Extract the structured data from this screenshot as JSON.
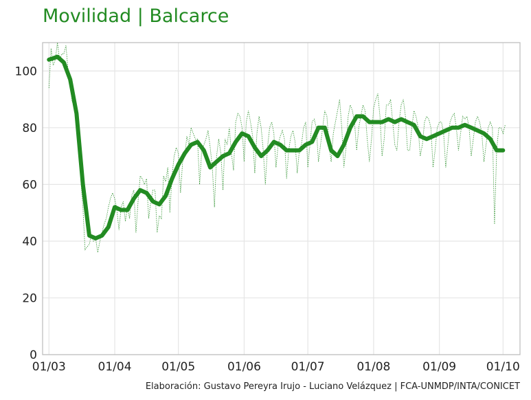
{
  "chart_data": {
    "type": "line",
    "title": "Movilidad | Balcarce",
    "caption": "Elaboración: Gustavo Pereyra Irujo - Luciano Velázquez | FCA-UNMDP/INTA/CONICET",
    "xlabel": "",
    "ylabel": "",
    "ylim": [
      0,
      110
    ],
    "xlim": [
      -3,
      222
    ],
    "grid": true,
    "y_ticks": [
      0,
      20,
      40,
      60,
      80,
      100
    ],
    "x_ticks": [
      {
        "day": 0,
        "label": "01/03"
      },
      {
        "day": 31,
        "label": "01/04"
      },
      {
        "day": 61,
        "label": "01/05"
      },
      {
        "day": 92,
        "label": "01/06"
      },
      {
        "day": 122,
        "label": "01/07"
      },
      {
        "day": 153,
        "label": "01/08"
      },
      {
        "day": 184,
        "label": "01/09"
      },
      {
        "day": 214,
        "label": "01/10"
      }
    ],
    "colors": {
      "accent": "#228b22",
      "grid": "#e5e5e5",
      "frame": "#bfbfbf"
    },
    "series": [
      {
        "style": "smoothed",
        "x": [
          0,
          4,
          7,
          10,
          13,
          16,
          19,
          22,
          25,
          28,
          31,
          34,
          37,
          40,
          43,
          46,
          49,
          52,
          55,
          58,
          61,
          64,
          67,
          70,
          73,
          76,
          79,
          82,
          85,
          88,
          91,
          94,
          97,
          100,
          103,
          106,
          109,
          112,
          115,
          118,
          121,
          124,
          127,
          130,
          133,
          136,
          139,
          142,
          145,
          148,
          151,
          154,
          157,
          160,
          163,
          166,
          169,
          172,
          175,
          178,
          181,
          184,
          187,
          190,
          193,
          196,
          199,
          202,
          205,
          208,
          211,
          214
        ],
        "y": [
          104,
          105,
          103,
          97,
          85,
          60,
          42,
          41,
          42,
          45,
          52,
          51,
          51,
          55,
          58,
          57,
          54,
          53,
          56,
          62,
          67,
          71,
          74,
          75,
          72,
          66,
          68,
          70,
          71,
          75,
          78,
          77,
          73,
          70,
          72,
          75,
          74,
          72,
          72,
          72,
          74,
          75,
          80,
          80,
          72,
          70,
          74,
          80,
          84,
          84,
          82,
          82,
          82,
          83,
          82,
          83,
          82,
          81,
          77,
          76,
          77,
          78,
          79,
          80,
          80,
          81,
          80,
          79,
          78,
          76,
          72,
          72
        ]
      },
      {
        "style": "daily",
        "x": [
          0,
          1,
          2,
          3,
          4,
          5,
          6,
          7,
          8,
          9,
          10,
          11,
          12,
          13,
          14,
          15,
          16,
          17,
          18,
          19,
          20,
          21,
          22,
          23,
          24,
          25,
          26,
          27,
          28,
          29,
          30,
          31,
          32,
          33,
          34,
          35,
          36,
          37,
          38,
          39,
          40,
          41,
          42,
          43,
          44,
          45,
          46,
          47,
          48,
          49,
          50,
          51,
          52,
          53,
          54,
          55,
          56,
          57,
          58,
          59,
          60,
          61,
          62,
          63,
          64,
          65,
          66,
          67,
          68,
          69,
          70,
          71,
          72,
          73,
          74,
          75,
          76,
          77,
          78,
          79,
          80,
          81,
          82,
          83,
          84,
          85,
          86,
          87,
          88,
          89,
          90,
          91,
          92,
          93,
          94,
          95,
          96,
          97,
          98,
          99,
          100,
          101,
          102,
          103,
          104,
          105,
          106,
          107,
          108,
          109,
          110,
          111,
          112,
          113,
          114,
          115,
          116,
          117,
          118,
          119,
          120,
          121,
          122,
          123,
          124,
          125,
          126,
          127,
          128,
          129,
          130,
          131,
          132,
          133,
          134,
          135,
          136,
          137,
          138,
          139,
          140,
          141,
          142,
          143,
          144,
          145,
          146,
          147,
          148,
          149,
          150,
          151,
          152,
          153,
          154,
          155,
          156,
          157,
          158,
          159,
          160,
          161,
          162,
          163,
          164,
          165,
          166,
          167,
          168,
          169,
          170,
          171,
          172,
          173,
          174,
          175,
          176,
          177,
          178,
          179,
          180,
          181,
          182,
          183,
          184,
          185,
          186,
          187,
          188,
          189,
          190,
          191,
          192,
          193,
          194,
          195,
          196,
          197,
          198,
          199,
          200,
          201,
          202,
          203,
          204,
          205,
          206,
          207,
          208,
          209,
          210,
          211,
          212,
          213,
          214,
          215
        ],
        "y": [
          94,
          108,
          102,
          104,
          110,
          104,
          106,
          106,
          109,
          100,
          95,
          89,
          92,
          80,
          78,
          62,
          52,
          37,
          38,
          39,
          42,
          40,
          41,
          36,
          40,
          43,
          46,
          48,
          52,
          55,
          57,
          55,
          51,
          44,
          52,
          54,
          47,
          52,
          48,
          56,
          58,
          43,
          54,
          63,
          62,
          60,
          62,
          48,
          54,
          58,
          58,
          43,
          49,
          48,
          63,
          61,
          66,
          50,
          63,
          70,
          73,
          71,
          57,
          68,
          70,
          77,
          74,
          80,
          78,
          76,
          76,
          60,
          72,
          74,
          76,
          79,
          73,
          66,
          52,
          70,
          76,
          71,
          58,
          76,
          74,
          80,
          71,
          65,
          82,
          85,
          84,
          80,
          68,
          82,
          86,
          82,
          77,
          64,
          78,
          84,
          80,
          72,
          60,
          73,
          80,
          82,
          78,
          66,
          74,
          77,
          79,
          76,
          62,
          72,
          77,
          79,
          75,
          64,
          72,
          74,
          80,
          82,
          66,
          74,
          82,
          83,
          80,
          68,
          74,
          80,
          86,
          84,
          74,
          68,
          78,
          82,
          86,
          90,
          80,
          66,
          73,
          84,
          88,
          86,
          82,
          72,
          80,
          84,
          88,
          86,
          76,
          68,
          76,
          87,
          90,
          92,
          84,
          70,
          76,
          88,
          88,
          90,
          82,
          74,
          72,
          82,
          88,
          90,
          84,
          72,
          72,
          80,
          86,
          84,
          80,
          70,
          74,
          82,
          84,
          83,
          80,
          66,
          72,
          80,
          82,
          82,
          78,
          66,
          74,
          82,
          84,
          85,
          80,
          72,
          78,
          84,
          83,
          84,
          80,
          70,
          76,
          82,
          84,
          82,
          78,
          68,
          74,
          80,
          82,
          80,
          46,
          72,
          80,
          80,
          78,
          81
        ]
      }
    ]
  }
}
